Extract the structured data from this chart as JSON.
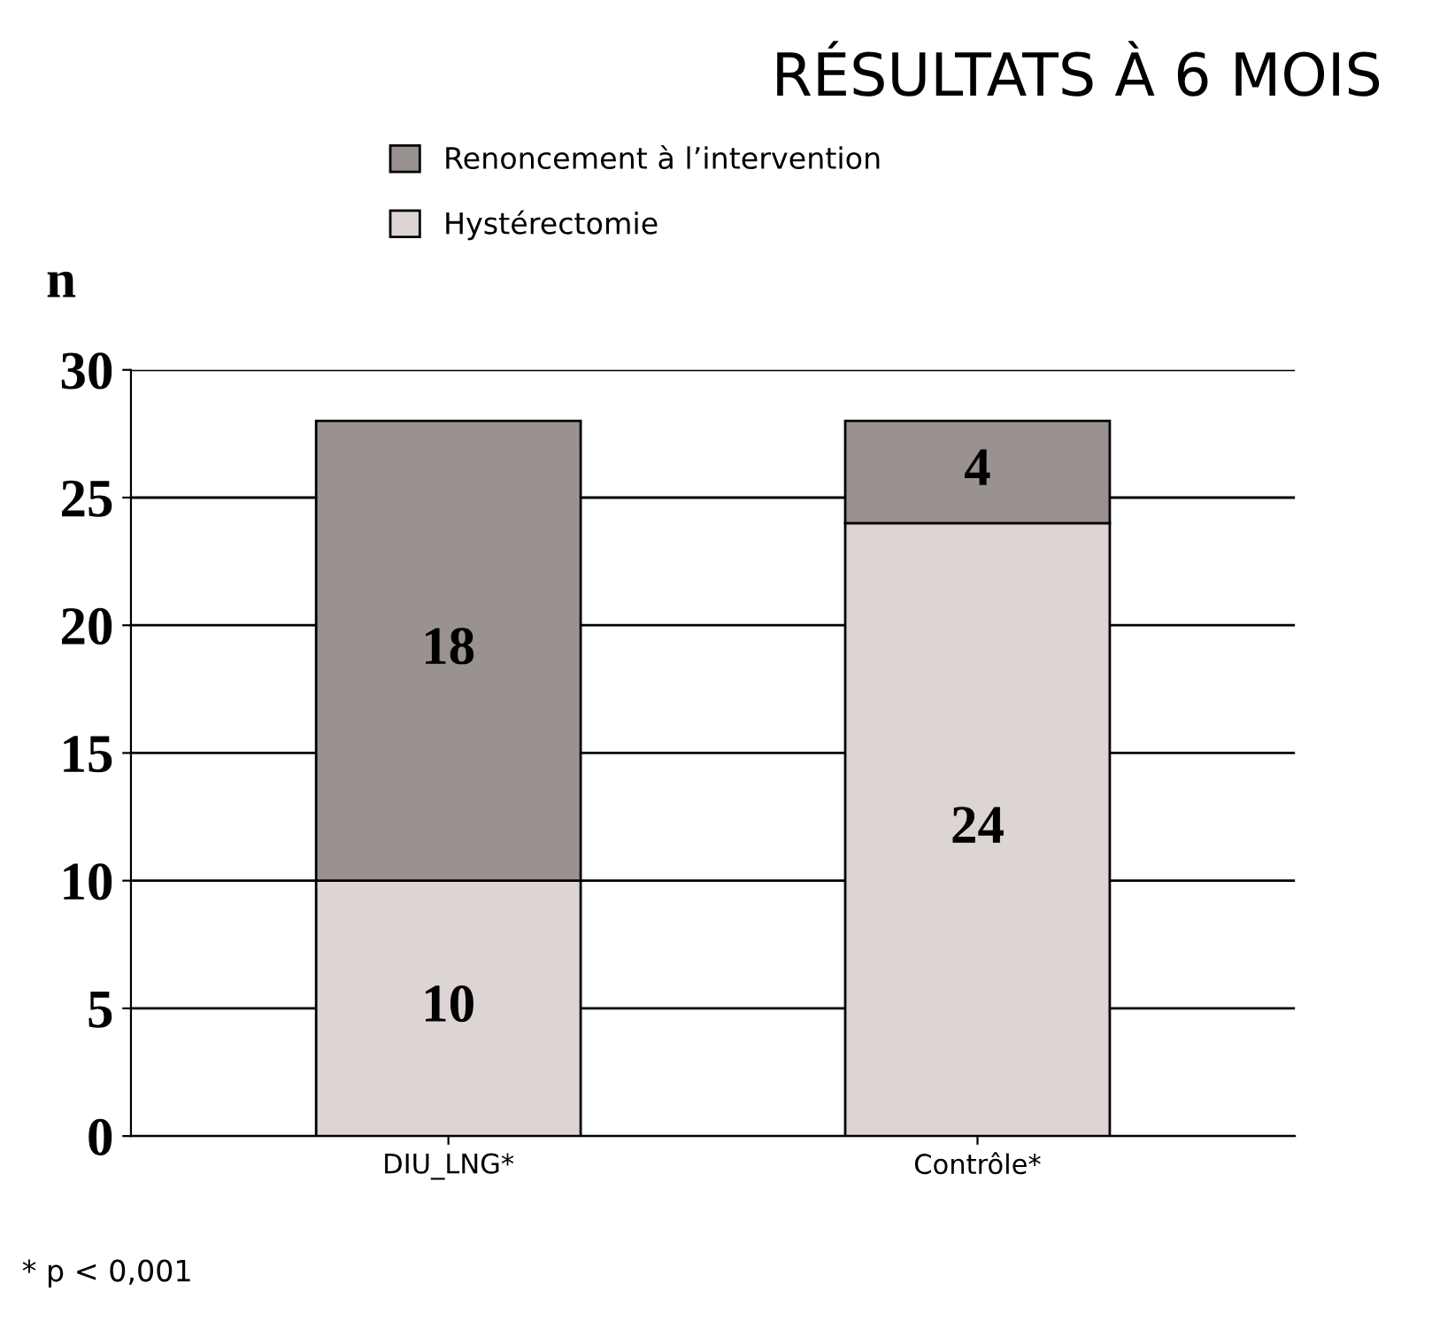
{
  "chart_data": {
    "type": "bar",
    "title": "RÉSULTATS À 6 MOIS",
    "ylabel": "n",
    "categories": [
      "DIU_LNG*",
      "Contrôle*"
    ],
    "series": [
      {
        "name": "Hystérectomie",
        "color": "#dcd5d3",
        "values": [
          10,
          24
        ]
      },
      {
        "name": "Renoncement à l’intervention",
        "color": "#9a9290",
        "values": [
          18,
          4
        ]
      }
    ],
    "stacked": true,
    "data_labels": true,
    "ylim": [
      0,
      30
    ],
    "yticks": [
      0,
      5,
      10,
      15,
      20,
      25,
      30
    ],
    "grid": "y",
    "legend": "top",
    "annotations": [
      "* p < 0,001"
    ]
  }
}
